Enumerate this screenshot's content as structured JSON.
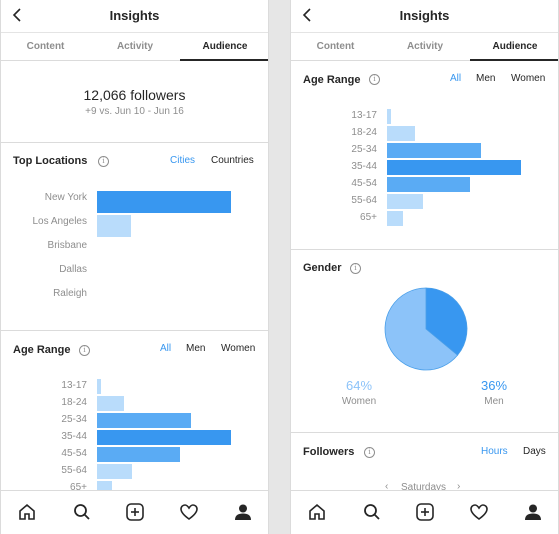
{
  "colors": {
    "accent": "#3897f0",
    "bar_primary": "#3897f0",
    "bar_secondary": "#b9dcfb",
    "bar_mid": "#5aabf4",
    "pie_women": "#8cc3f9",
    "pie_men": "#3897f0"
  },
  "left": {
    "header": {
      "title": "Insights"
    },
    "tabs": [
      {
        "label": "Content"
      },
      {
        "label": "Activity"
      },
      {
        "label": "Audience"
      }
    ],
    "followers": {
      "count": "12,066 followers",
      "change": "+9 vs. Jun 10 - Jun 16"
    },
    "top_locations": {
      "title": "Top Locations",
      "filters": [
        "Cities",
        "Countries"
      ],
      "chart_data": {
        "type": "bar",
        "categories": [
          "New York",
          "Los Angeles",
          "Brisbane",
          "Dallas",
          "Raleigh"
        ],
        "values": [
          100,
          25,
          0,
          0,
          0
        ]
      }
    },
    "age_range": {
      "title": "Age Range",
      "filters": [
        "All",
        "Men",
        "Women"
      ],
      "chart_data": {
        "type": "bar",
        "categories": [
          "13-17",
          "18-24",
          "25-34",
          "35-44",
          "45-54",
          "55-64",
          "65+"
        ],
        "values": [
          3,
          20,
          70,
          100,
          62,
          26,
          11
        ]
      }
    }
  },
  "right": {
    "header": {
      "title": "Insights"
    },
    "tabs": [
      {
        "label": "Content"
      },
      {
        "label": "Activity"
      },
      {
        "label": "Audience"
      }
    ],
    "age_range": {
      "title": "Age Range",
      "filters": [
        "All",
        "Men",
        "Women"
      ],
      "chart_data": {
        "type": "bar",
        "categories": [
          "13-17",
          "18-24",
          "25-34",
          "35-44",
          "45-54",
          "55-64",
          "65+"
        ],
        "values": [
          3,
          21,
          70,
          100,
          62,
          27,
          12
        ]
      }
    },
    "gender": {
      "title": "Gender",
      "chart_data": {
        "type": "pie",
        "categories": [
          "Women",
          "Men"
        ],
        "values": [
          64,
          36
        ]
      },
      "women_pct": "64%",
      "women_label": "Women",
      "men_pct": "36%",
      "men_label": "Men"
    },
    "followers": {
      "title": "Followers",
      "filters": [
        "Hours",
        "Days"
      ],
      "day_selector": "Saturdays"
    }
  },
  "nav": {
    "icons": [
      "home-icon",
      "search-icon",
      "add-post-icon",
      "activity-heart-icon",
      "profile-icon"
    ]
  }
}
